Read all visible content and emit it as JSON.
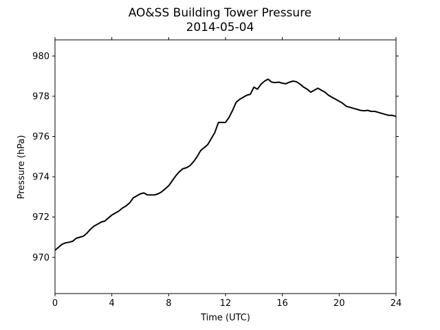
{
  "chart_data": {
    "type": "line",
    "title": "AO&SS Building Tower Pressure",
    "subtitle": "2014-05-04",
    "xlabel": "Time (UTC)",
    "ylabel": "Pressure (hPa)",
    "xlim": [
      0,
      24
    ],
    "ylim": [
      968.2,
      980.8
    ],
    "x_ticks": [
      0,
      4,
      8,
      12,
      16,
      20,
      24
    ],
    "y_ticks": [
      970,
      972,
      974,
      976,
      978,
      980
    ],
    "grid": false,
    "line_color": "#000000",
    "series": [
      {
        "x": [
          0,
          0.25,
          0.5,
          0.75,
          1,
          1.25,
          1.5,
          1.75,
          2,
          2.25,
          2.5,
          2.75,
          3,
          3.25,
          3.5,
          3.75,
          4,
          4.25,
          4.5,
          4.75,
          5,
          5.25,
          5.5,
          5.75,
          6,
          6.25,
          6.5,
          6.75,
          7,
          7.25,
          7.5,
          7.75,
          8,
          8.25,
          8.5,
          8.75,
          9,
          9.25,
          9.5,
          9.75,
          10,
          10.25,
          10.5,
          10.75,
          11,
          11.25,
          11.5,
          11.75,
          12,
          12.25,
          12.5,
          12.75,
          13,
          13.25,
          13.5,
          13.75,
          14,
          14.25,
          14.5,
          14.75,
          15,
          15.25,
          15.5,
          15.75,
          16,
          16.25,
          16.5,
          16.75,
          17,
          17.25,
          17.5,
          17.75,
          18,
          18.25,
          18.5,
          18.75,
          19,
          19.25,
          19.5,
          19.75,
          20,
          20.25,
          20.5,
          20.75,
          21,
          21.25,
          21.5,
          21.75,
          22,
          22.25,
          22.5,
          22.75,
          23,
          23.25,
          23.5,
          23.75,
          24
        ],
        "values": [
          970.35,
          970.5,
          970.65,
          970.72,
          970.75,
          970.8,
          970.95,
          971.0,
          971.05,
          971.2,
          971.4,
          971.55,
          971.65,
          971.75,
          971.8,
          971.95,
          972.1,
          972.2,
          972.3,
          972.45,
          972.55,
          972.7,
          972.95,
          973.05,
          973.15,
          973.2,
          973.1,
          973.1,
          973.1,
          973.15,
          973.25,
          973.4,
          973.55,
          973.8,
          974.05,
          974.25,
          974.4,
          974.45,
          974.55,
          974.75,
          975.0,
          975.3,
          975.45,
          975.6,
          975.9,
          976.2,
          976.7,
          976.7,
          976.7,
          976.95,
          977.3,
          977.7,
          977.85,
          977.95,
          978.05,
          978.1,
          978.45,
          978.35,
          978.6,
          978.75,
          978.85,
          978.7,
          978.68,
          978.7,
          978.65,
          978.62,
          978.7,
          978.75,
          978.72,
          978.6,
          978.45,
          978.35,
          978.2,
          978.3,
          978.4,
          978.3,
          978.2,
          978.05,
          977.95,
          977.85,
          977.75,
          977.65,
          977.5,
          977.45,
          977.4,
          977.35,
          977.3,
          977.28,
          977.3,
          977.25,
          977.25,
          977.2,
          977.15,
          977.1,
          977.05,
          977.05,
          977.0
        ]
      }
    ]
  }
}
